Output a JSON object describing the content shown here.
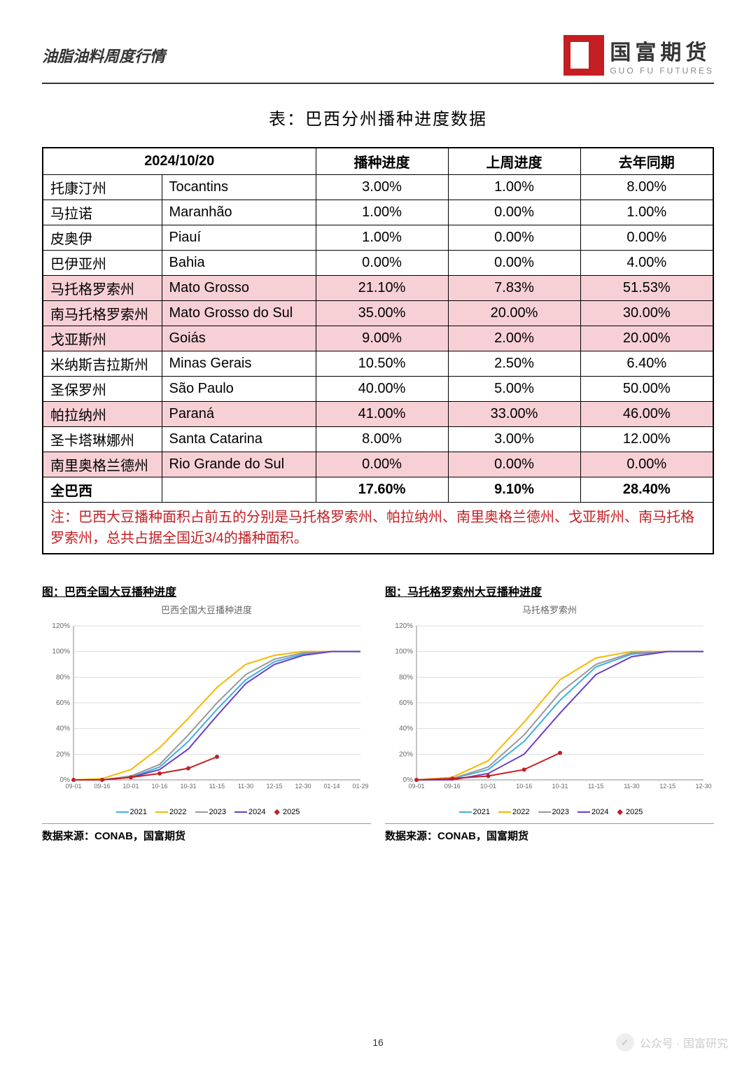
{
  "header": {
    "title": "油脂油料周度行情"
  },
  "logo": {
    "cn": "国富期货",
    "en": "GUO FU FUTURES"
  },
  "table": {
    "title": "表：巴西分州播种进度数据",
    "date_header": "2024/10/20",
    "columns": [
      "播种进度",
      "上周进度",
      "去年同期"
    ],
    "rows": [
      {
        "cn": "托康汀州",
        "en": "Tocantins",
        "v": [
          "3.00%",
          "1.00%",
          "8.00%"
        ],
        "hl": false
      },
      {
        "cn": "马拉诺",
        "en": "Maranhão",
        "v": [
          "1.00%",
          "0.00%",
          "1.00%"
        ],
        "hl": false
      },
      {
        "cn": "皮奥伊",
        "en": "Piauí",
        "v": [
          "1.00%",
          "0.00%",
          "0.00%"
        ],
        "hl": false
      },
      {
        "cn": "巴伊亚州",
        "en": "Bahia",
        "v": [
          "0.00%",
          "0.00%",
          "4.00%"
        ],
        "hl": false
      },
      {
        "cn": "马托格罗索州",
        "en": "Mato Grosso",
        "v": [
          "21.10%",
          "7.83%",
          "51.53%"
        ],
        "hl": true
      },
      {
        "cn": "南马托格罗索州",
        "en": "Mato Grosso do Sul",
        "v": [
          "35.00%",
          "20.00%",
          "30.00%"
        ],
        "hl": true
      },
      {
        "cn": "戈亚斯州",
        "en": "Goiás",
        "v": [
          "9.00%",
          "2.00%",
          "20.00%"
        ],
        "hl": true
      },
      {
        "cn": "米纳斯吉拉斯州",
        "en": "Minas Gerais",
        "v": [
          "10.50%",
          "2.50%",
          "6.40%"
        ],
        "hl": false
      },
      {
        "cn": "圣保罗州",
        "en": "São Paulo",
        "v": [
          "40.00%",
          "5.00%",
          "50.00%"
        ],
        "hl": false
      },
      {
        "cn": "帕拉纳州",
        "en": "Paraná",
        "v": [
          "41.00%",
          "33.00%",
          "46.00%"
        ],
        "hl": true
      },
      {
        "cn": "圣卡塔琳娜州",
        "en": "Santa Catarina",
        "v": [
          "8.00%",
          "3.00%",
          "12.00%"
        ],
        "hl": false
      },
      {
        "cn": "南里奥格兰德州",
        "en": "Rio Grande do Sul",
        "v": [
          "0.00%",
          "0.00%",
          "0.00%"
        ],
        "hl": true
      }
    ],
    "total": {
      "cn": "全巴西",
      "en": "",
      "v": [
        "17.60%",
        "9.10%",
        "28.40%"
      ]
    },
    "note": "注：巴西大豆播种面积占前五的分别是马托格罗索州、帕拉纳州、南里奥格兰德州、戈亚斯州、南马托格罗索州，总共占据全国近3/4的播种面积。"
  },
  "charts": {
    "type": "line",
    "ylim": [
      0,
      120
    ],
    "ytick_step": 20,
    "ytick_labels": [
      "0%",
      "20%",
      "40%",
      "60%",
      "80%",
      "100%",
      "120%"
    ],
    "grid_color": "#dddddd",
    "axis_color": "#888888",
    "line_width": 2,
    "marker_size": 3,
    "font_size_axis": 10,
    "font_size_title": 13,
    "legend_items": [
      {
        "label": "2021",
        "color": "#3fb0e0"
      },
      {
        "label": "2022",
        "color": "#f5b800"
      },
      {
        "label": "2023",
        "color": "#999999"
      },
      {
        "label": "2024",
        "color": "#6a3fc9"
      },
      {
        "label": "2025",
        "color": "#c41e23",
        "marker": true
      }
    ],
    "left": {
      "label": "图：巴西全国大豆播种进度",
      "subtitle": "巴西全国大豆播种进度",
      "xticks": [
        "09-01",
        "09-16",
        "10-01",
        "10-16",
        "10-31",
        "11-15",
        "11-30",
        "12-15",
        "12-30",
        "01-14",
        "01-29"
      ],
      "series": {
        "2021": [
          0,
          0,
          2,
          10,
          30,
          55,
          78,
          92,
          98,
          100,
          100
        ],
        "2022": [
          0,
          1,
          8,
          25,
          48,
          72,
          90,
          97,
          100,
          100,
          100
        ],
        "2023": [
          0,
          0,
          3,
          12,
          35,
          60,
          82,
          94,
          99,
          100,
          100
        ],
        "2024": [
          0,
          0,
          2,
          8,
          24,
          50,
          75,
          90,
          97,
          100,
          100
        ],
        "2025": [
          0,
          0,
          2,
          5,
          9,
          18
        ]
      }
    },
    "right": {
      "label": "图：马托格罗索州大豆播种进度",
      "subtitle": "马托格罗索州",
      "xticks": [
        "09-01",
        "09-16",
        "10-01",
        "10-16",
        "10-31",
        "11-15",
        "11-30",
        "12-15",
        "12-30"
      ],
      "series": {
        "2021": [
          0,
          1,
          8,
          30,
          62,
          88,
          98,
          100,
          100
        ],
        "2022": [
          0,
          2,
          15,
          45,
          78,
          95,
          100,
          100,
          100
        ],
        "2023": [
          0,
          1,
          10,
          35,
          68,
          90,
          99,
          100,
          100
        ],
        "2024": [
          0,
          0,
          5,
          20,
          52,
          82,
          96,
          100,
          100
        ],
        "2025": [
          0,
          1,
          3,
          8,
          21
        ]
      }
    },
    "source": "数据来源：CONAB，国富期货"
  },
  "page_number": "16",
  "footer": {
    "text": "公众号 · 国富研究"
  }
}
